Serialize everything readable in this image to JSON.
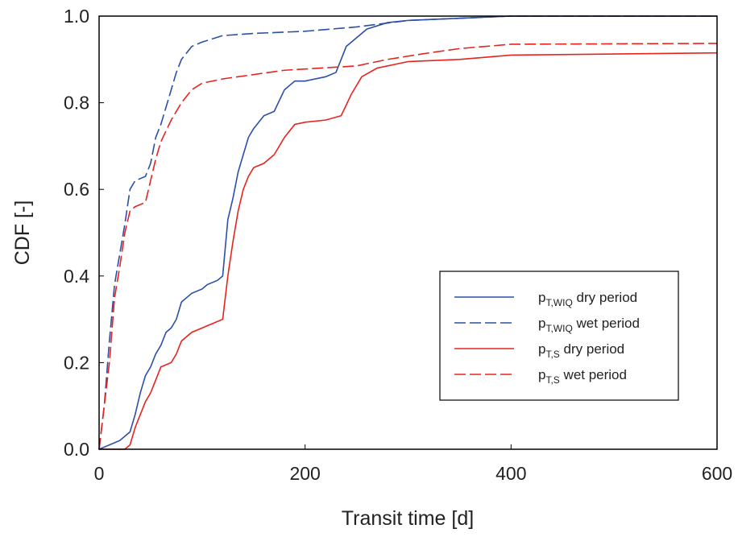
{
  "chart_data": {
    "type": "line",
    "xlabel": "Transit time [d]",
    "ylabel": "CDF [-]",
    "xlim": [
      0,
      600
    ],
    "xticks": [
      0,
      200,
      400,
      600
    ],
    "ylim": [
      0,
      1
    ],
    "yticks": [
      {
        "value": 0,
        "label": "0.0"
      },
      {
        "value": 0.2,
        "label": "0.2"
      },
      {
        "value": 0.4,
        "label": "0.4"
      },
      {
        "value": 0.6,
        "label": "0.6"
      },
      {
        "value": 0.8,
        "label": "0.8"
      },
      {
        "value": 1,
        "label": "1.0"
      }
    ],
    "legend": "lower right",
    "series": [
      {
        "name": [
          "p",
          "T,WIQ",
          " dry period"
        ],
        "color": "#2b4ea8",
        "dash": false,
        "x": [
          0,
          10,
          20,
          30,
          35,
          40,
          45,
          50,
          55,
          60,
          65,
          70,
          75,
          80,
          85,
          90,
          100,
          105,
          115,
          120,
          125,
          130,
          135,
          140,
          145,
          150,
          160,
          170,
          180,
          190,
          200,
          220,
          230,
          235,
          240,
          250,
          260,
          280,
          300,
          350,
          400,
          600
        ],
        "values": [
          0,
          0.01,
          0.02,
          0.04,
          0.08,
          0.13,
          0.17,
          0.19,
          0.22,
          0.24,
          0.27,
          0.28,
          0.3,
          0.34,
          0.35,
          0.36,
          0.37,
          0.38,
          0.39,
          0.4,
          0.53,
          0.58,
          0.64,
          0.68,
          0.72,
          0.74,
          0.77,
          0.78,
          0.83,
          0.85,
          0.85,
          0.86,
          0.87,
          0.9,
          0.93,
          0.95,
          0.97,
          0.985,
          0.99,
          0.995,
          1,
          1
        ]
      },
      {
        "name": [
          "p",
          "T,WIQ",
          " wet period"
        ],
        "color": "#2b4ea8",
        "dash": true,
        "x": [
          0,
          5,
          10,
          15,
          20,
          25,
          30,
          35,
          45,
          50,
          55,
          60,
          65,
          70,
          75,
          80,
          90,
          100,
          120,
          150,
          200,
          250,
          300,
          350,
          400,
          600
        ],
        "values": [
          0,
          0.1,
          0.25,
          0.38,
          0.45,
          0.52,
          0.6,
          0.62,
          0.63,
          0.66,
          0.72,
          0.75,
          0.79,
          0.83,
          0.87,
          0.9,
          0.93,
          0.94,
          0.955,
          0.96,
          0.965,
          0.975,
          0.99,
          0.995,
          1,
          1
        ]
      },
      {
        "name": [
          "p",
          "T,S",
          " dry period"
        ],
        "color": "#e8231e",
        "dash": false,
        "x": [
          0,
          25,
          30,
          35,
          40,
          45,
          50,
          55,
          60,
          70,
          75,
          80,
          90,
          100,
          110,
          120,
          125,
          130,
          135,
          140,
          145,
          150,
          160,
          170,
          180,
          190,
          200,
          220,
          235,
          245,
          255,
          270,
          300,
          350,
          400,
          600
        ],
        "values": [
          0,
          0,
          0.01,
          0.05,
          0.08,
          0.11,
          0.13,
          0.16,
          0.19,
          0.2,
          0.22,
          0.25,
          0.27,
          0.28,
          0.29,
          0.3,
          0.4,
          0.48,
          0.55,
          0.6,
          0.63,
          0.65,
          0.66,
          0.68,
          0.72,
          0.75,
          0.755,
          0.76,
          0.77,
          0.82,
          0.86,
          0.88,
          0.895,
          0.9,
          0.91,
          0.915
        ]
      },
      {
        "name": [
          "p",
          "T,S",
          " wet period"
        ],
        "color": "#e8231e",
        "dash": true,
        "x": [
          0,
          5,
          10,
          15,
          20,
          25,
          30,
          35,
          45,
          50,
          55,
          60,
          70,
          80,
          90,
          100,
          120,
          150,
          180,
          250,
          280,
          320,
          350,
          400,
          600
        ],
        "values": [
          0,
          0.1,
          0.2,
          0.35,
          0.42,
          0.5,
          0.55,
          0.56,
          0.57,
          0.62,
          0.67,
          0.71,
          0.76,
          0.8,
          0.83,
          0.845,
          0.855,
          0.865,
          0.875,
          0.885,
          0.9,
          0.915,
          0.925,
          0.935,
          0.937
        ]
      }
    ]
  }
}
